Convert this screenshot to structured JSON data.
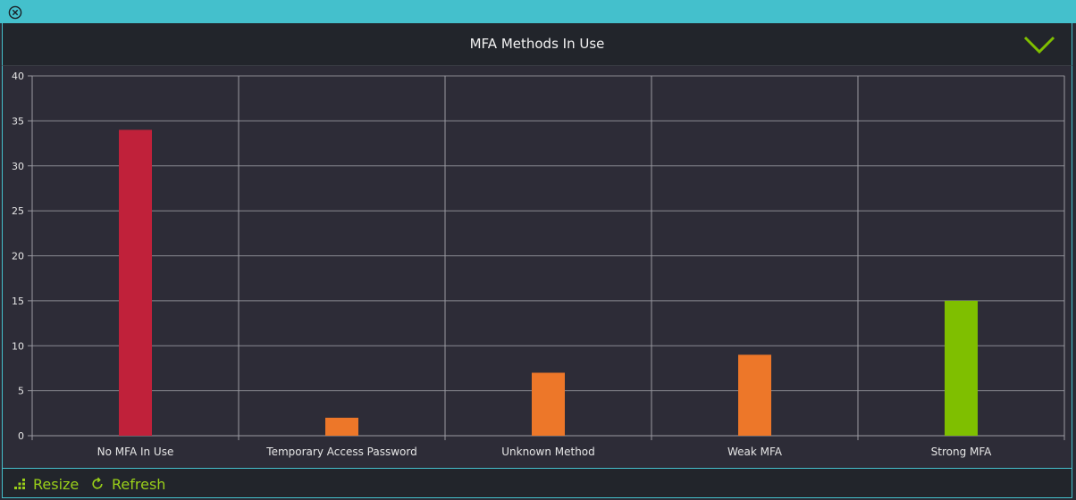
{
  "header": {
    "title": "MFA Methods In Use"
  },
  "footer": {
    "resize_label": "Resize",
    "refresh_label": "Refresh"
  },
  "icons": {
    "close": "close-circle-icon",
    "collapse": "chevron-down-icon",
    "resize": "resize-grid-icon",
    "refresh": "refresh-icon"
  },
  "colors": {
    "accent": "#44c0cc",
    "footer_text": "#9ad019",
    "red": "#c0213a",
    "orange": "#ed7729",
    "green": "#7fbf00"
  },
  "chart_data": {
    "type": "bar",
    "title": "MFA Methods In Use",
    "categories": [
      "No MFA In Use",
      "Temporary Access Password",
      "Unknown Method",
      "Weak MFA",
      "Strong MFA"
    ],
    "values": [
      34,
      2,
      7,
      9,
      15
    ],
    "colors": [
      "#c0213a",
      "#ed7729",
      "#ed7729",
      "#ed7729",
      "#7fbf00"
    ],
    "ylim": [
      0,
      40
    ],
    "yticks": [
      0,
      5,
      10,
      15,
      20,
      25,
      30,
      35,
      40
    ],
    "grid": true,
    "xlabel": "",
    "ylabel": ""
  }
}
